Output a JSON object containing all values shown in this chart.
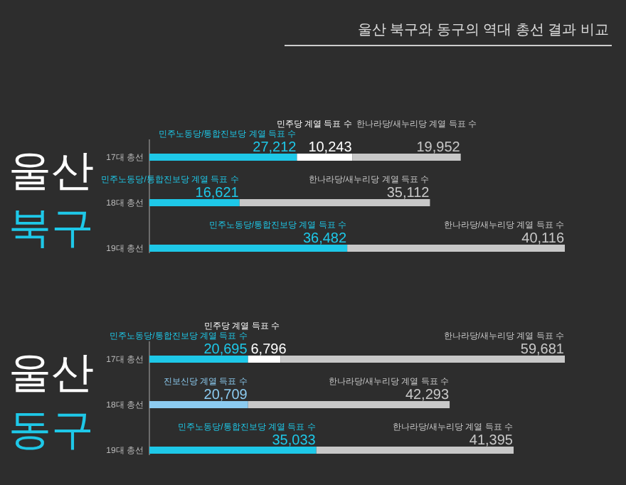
{
  "chart_data": [
    {
      "type": "bar",
      "orientation": "horizontal",
      "stacked": true,
      "title": "울산 북구",
      "annotations": [
        "울산 북구와 동구의 역대 총선 결과 비교"
      ],
      "categories": [
        "17대 총선",
        "18대 총선",
        "19대 총선"
      ],
      "series": [
        {
          "name": "민주노동당/통합진보당 계열 득표 수",
          "color": "#1ec8e8",
          "values": [
            27212,
            16621,
            36482
          ],
          "value_labels": [
            "27,212",
            "16,621",
            "36,482"
          ]
        },
        {
          "name": "민주당 계열 득표 수",
          "color": "#ffffff",
          "values": [
            10243,
            null,
            null
          ],
          "value_labels": [
            "10,243",
            null,
            null
          ]
        },
        {
          "name": "한나라당/새누리당 계열 득표 수",
          "color": "#c8c8c8",
          "values": [
            19952,
            35112,
            40116
          ],
          "value_labels": [
            "19,952",
            "35,112",
            "40,116"
          ]
        }
      ]
    },
    {
      "type": "bar",
      "orientation": "horizontal",
      "stacked": true,
      "title": "울산 동구",
      "categories": [
        "17대 총선",
        "18대 총선",
        "19대 총선"
      ],
      "series": [
        {
          "name": "민주노동당/통합진보당 계열 득표 수",
          "color": "#1ec8e8",
          "values": [
            20695,
            null,
            35033
          ],
          "value_labels": [
            "20,695",
            null,
            "35,033"
          ]
        },
        {
          "name": "진보신당 계열 득표 수",
          "color": "#8ccbf0",
          "values": [
            null,
            20709,
            null
          ],
          "value_labels": [
            null,
            "20,709",
            null
          ]
        },
        {
          "name": "민주당 계열 득표 수",
          "color": "#ffffff",
          "values": [
            6796,
            null,
            null
          ],
          "value_labels": [
            "6,796",
            null,
            null
          ]
        },
        {
          "name": "한나라당/새누리당 계열 득표 수",
          "color": "#c8c8c8",
          "values": [
            59681,
            42293,
            41395
          ],
          "value_labels": [
            "59,681",
            "42,293",
            "41,395"
          ]
        }
      ]
    }
  ]
}
